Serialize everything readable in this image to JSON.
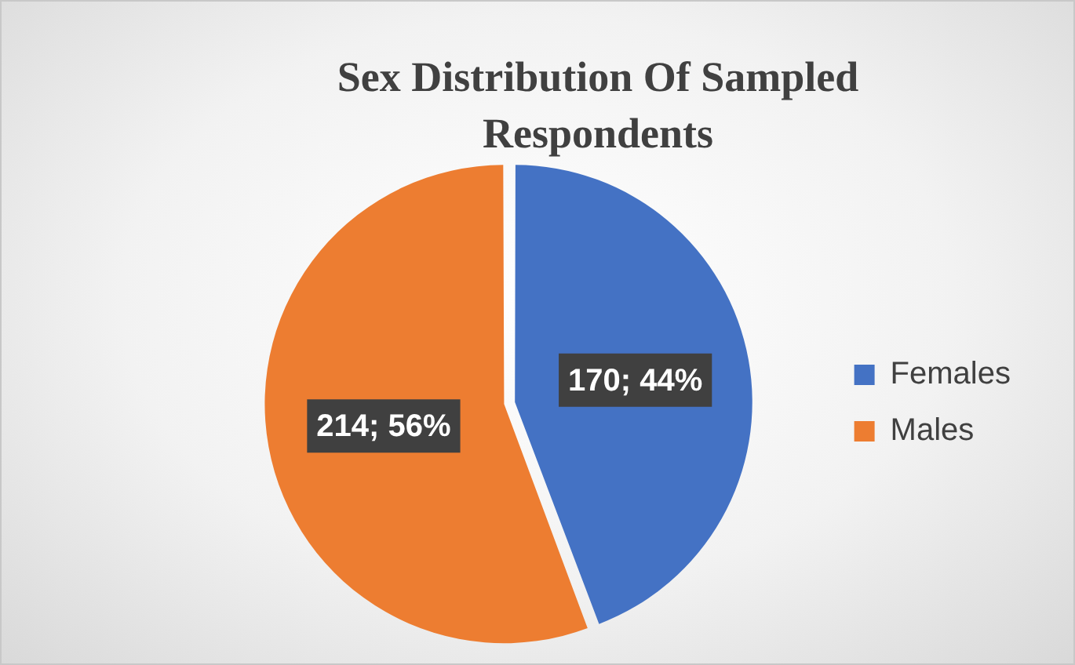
{
  "chart_data": {
    "type": "pie",
    "title": "Sex Distribution Of Sampled Respondents",
    "categories": [
      "Females",
      "Males"
    ],
    "values": [
      170,
      214
    ],
    "colors": [
      "#4472c4",
      "#ed7d31"
    ],
    "value_labels": [
      "170; 44%",
      "214; 56%"
    ],
    "legend": "right"
  }
}
